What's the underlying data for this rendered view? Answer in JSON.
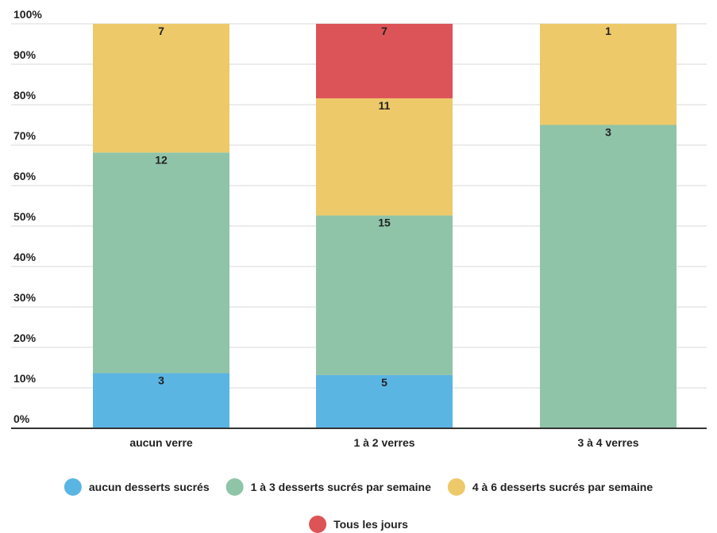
{
  "chart_data": {
    "type": "bar",
    "stacked": "percent",
    "categories": [
      "aucun verre",
      "1 à 2 verres",
      "3 à 4 verres"
    ],
    "series": [
      {
        "name": "aucun desserts sucrés",
        "values": [
          3,
          5,
          0
        ],
        "color": "#5bb5e3"
      },
      {
        "name": "1 à 3 desserts sucrés par semaine",
        "values": [
          12,
          15,
          3
        ],
        "color": "#8fc4a8"
      },
      {
        "name": "4 à 6 desserts sucrés par semaine",
        "values": [
          7,
          11,
          1
        ],
        "color": "#eec969"
      },
      {
        "name": "Tous les jours",
        "values": [
          0,
          7,
          0
        ],
        "color": "#dc5457"
      }
    ],
    "y_ticks": [
      "0%",
      "10%",
      "20%",
      "30%",
      "40%",
      "50%",
      "60%",
      "70%",
      "80%",
      "90%",
      "100%"
    ],
    "ylim": [
      0,
      100
    ],
    "grid": true,
    "legend_position": "bottom"
  }
}
